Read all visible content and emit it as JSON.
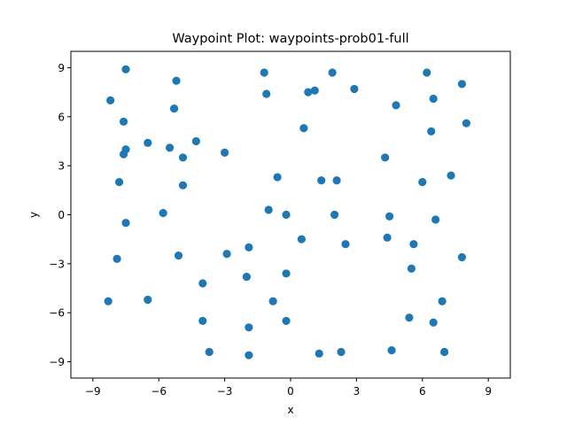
{
  "chart_data": {
    "type": "scatter",
    "title": "Waypoint Plot: waypoints-prob01-full",
    "xlabel": "x",
    "ylabel": "y",
    "xlim": [
      -10.0,
      10.0
    ],
    "ylim": [
      -10.0,
      10.0
    ],
    "xticks": [
      -9,
      -6,
      -3,
      0,
      3,
      6,
      9
    ],
    "yticks": [
      -9,
      -6,
      -3,
      0,
      3,
      6,
      9
    ],
    "grid": false,
    "marker_color": "#1f77b4",
    "points": [
      {
        "x": -7.5,
        "y": 8.9
      },
      {
        "x": -8.2,
        "y": 7.0
      },
      {
        "x": -7.6,
        "y": 5.7
      },
      {
        "x": -7.5,
        "y": 4.0
      },
      {
        "x": -7.6,
        "y": 3.7
      },
      {
        "x": -7.8,
        "y": 2.0
      },
      {
        "x": -7.5,
        "y": -0.5
      },
      {
        "x": -7.9,
        "y": -2.7
      },
      {
        "x": -8.3,
        "y": -5.3
      },
      {
        "x": -6.5,
        "y": -5.2
      },
      {
        "x": -6.5,
        "y": 4.4
      },
      {
        "x": -5.5,
        "y": 4.1
      },
      {
        "x": -5.2,
        "y": 8.2
      },
      {
        "x": -5.3,
        "y": 6.5
      },
      {
        "x": -4.9,
        "y": 3.5
      },
      {
        "x": -4.3,
        "y": 4.5
      },
      {
        "x": -4.9,
        "y": 1.8
      },
      {
        "x": -5.8,
        "y": 0.1
      },
      {
        "x": -5.1,
        "y": -2.5
      },
      {
        "x": -4.0,
        "y": -4.2
      },
      {
        "x": -4.0,
        "y": -6.5
      },
      {
        "x": -3.7,
        "y": -8.4
      },
      {
        "x": -2.9,
        "y": -2.4
      },
      {
        "x": -3.0,
        "y": 3.8
      },
      {
        "x": -1.2,
        "y": 8.7
      },
      {
        "x": -1.1,
        "y": 7.4
      },
      {
        "x": -0.6,
        "y": 2.3
      },
      {
        "x": -1.0,
        "y": 0.3
      },
      {
        "x": -1.9,
        "y": -2.0
      },
      {
        "x": -2.0,
        "y": -3.8
      },
      {
        "x": -0.8,
        "y": -5.3
      },
      {
        "x": -1.9,
        "y": -6.9
      },
      {
        "x": -1.9,
        "y": -8.6
      },
      {
        "x": -0.2,
        "y": 0.0
      },
      {
        "x": -0.2,
        "y": -3.6
      },
      {
        "x": -0.2,
        "y": -6.5
      },
      {
        "x": 0.5,
        "y": -1.5
      },
      {
        "x": 0.6,
        "y": 5.3
      },
      {
        "x": 0.8,
        "y": 7.5
      },
      {
        "x": 1.1,
        "y": 7.6
      },
      {
        "x": 1.9,
        "y": 8.7
      },
      {
        "x": 2.9,
        "y": 7.7
      },
      {
        "x": 1.4,
        "y": 2.1
      },
      {
        "x": 2.1,
        "y": 2.1
      },
      {
        "x": 2.0,
        "y": 0.0
      },
      {
        "x": 2.5,
        "y": -1.8
      },
      {
        "x": 1.3,
        "y": -8.5
      },
      {
        "x": 2.3,
        "y": -8.4
      },
      {
        "x": 4.3,
        "y": 3.5
      },
      {
        "x": 4.8,
        "y": 6.7
      },
      {
        "x": 4.5,
        "y": -0.1
      },
      {
        "x": 4.4,
        "y": -1.4
      },
      {
        "x": 5.6,
        "y": -1.8
      },
      {
        "x": 5.5,
        "y": -3.3
      },
      {
        "x": 5.4,
        "y": -6.3
      },
      {
        "x": 4.6,
        "y": -8.3
      },
      {
        "x": 6.2,
        "y": 8.7
      },
      {
        "x": 6.5,
        "y": 7.1
      },
      {
        "x": 6.4,
        "y": 5.1
      },
      {
        "x": 6.0,
        "y": 2.0
      },
      {
        "x": 6.6,
        "y": -0.3
      },
      {
        "x": 6.5,
        "y": -6.6
      },
      {
        "x": 6.9,
        "y": -5.3
      },
      {
        "x": 7.0,
        "y": -8.4
      },
      {
        "x": 7.3,
        "y": 2.4
      },
      {
        "x": 7.8,
        "y": 8.0
      },
      {
        "x": 8.0,
        "y": 5.6
      },
      {
        "x": 7.8,
        "y": -2.6
      }
    ]
  }
}
